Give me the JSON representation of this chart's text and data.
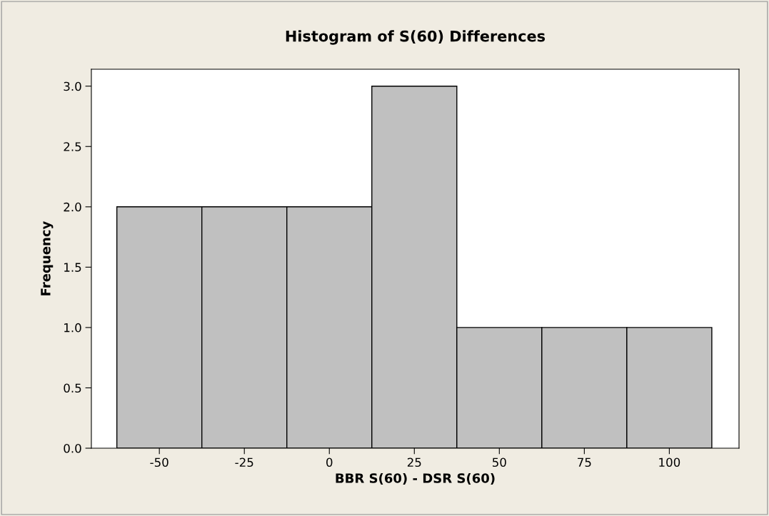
{
  "chart_data": {
    "type": "histogram",
    "title": "Histogram of S(60) Differences",
    "xlabel": "BBR S(60) - DSR S(60)",
    "ylabel": "Frequency",
    "bins": [
      -62.5,
      -37.5,
      -12.5,
      12.5,
      37.5,
      62.5,
      87.5,
      112.5
    ],
    "values": [
      2,
      2,
      2,
      3,
      1,
      1,
      1
    ],
    "color": "#c0c0c0",
    "xlim": [
      -70,
      120.5
    ],
    "xticks": [
      -50,
      -25,
      0,
      25,
      50,
      75,
      100
    ],
    "ylim": [
      0,
      3.14
    ],
    "yticks": [
      {
        "value": 0,
        "label": "0.0"
      },
      {
        "value": 0.5,
        "label": "0.5"
      },
      {
        "value": 1,
        "label": "1.0"
      },
      {
        "value": 1.5,
        "label": "1.5"
      },
      {
        "value": 2,
        "label": "2.0"
      },
      {
        "value": 2.5,
        "label": "2.5"
      },
      {
        "value": 3,
        "label": "3.0"
      }
    ],
    "grid": false
  }
}
